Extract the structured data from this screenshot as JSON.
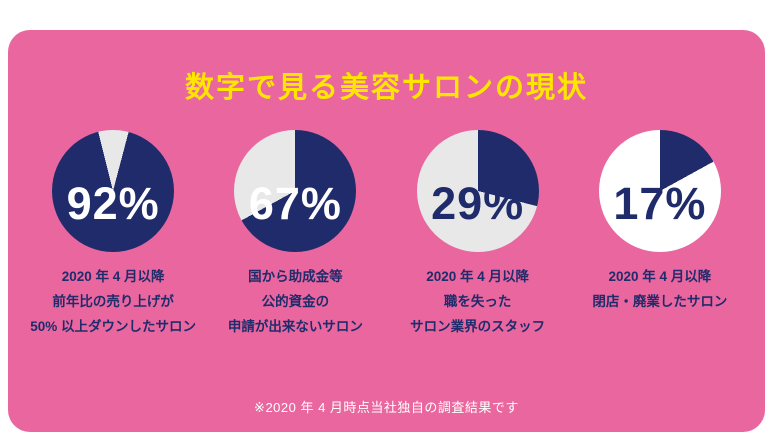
{
  "card": {
    "title": "数字で見る美容サロンの現状",
    "footnote": "※2020 年 4 月時点当社独自の調査結果です"
  },
  "colors": {
    "card_pink": "#E9679E",
    "title_yellow": "#FFE600",
    "navy": "#1F2B6B",
    "gray_slice": "#E8E8E8",
    "white": "#FFFFFF"
  },
  "chart_data": [
    {
      "type": "pie",
      "value_label": "92%",
      "percent": 92,
      "start_angle_deg": -14,
      "label_color": "#FFFFFF",
      "slices": [
        {
          "value": 8,
          "color": "#E8E8E8"
        },
        {
          "value": 92,
          "color": "#1F2B6B"
        }
      ],
      "caption_lines": {
        "0": "2020 年 4 月以降",
        "1": "前年比の売り上げが",
        "2": "50% 以上ダウンしたサロン"
      }
    },
    {
      "type": "pie",
      "value_label": "67%",
      "percent": 67,
      "start_angle_deg": 0,
      "label_color": "#FFFFFF",
      "slices": [
        {
          "value": 67,
          "color": "#1F2B6B"
        },
        {
          "value": 33,
          "color": "#E8E8E8"
        }
      ],
      "caption_lines": {
        "0": "国から助成金等",
        "1": "公的資金の",
        "2": "申請が出来ないサロン"
      }
    },
    {
      "type": "pie",
      "value_label": "29%",
      "percent": 29,
      "start_angle_deg": 0,
      "label_color": "#1F2B6B",
      "slices": [
        {
          "value": 29,
          "color": "#1F2B6B"
        },
        {
          "value": 71,
          "color": "#E8E8E8"
        }
      ],
      "caption_lines": {
        "0": "2020 年 4 月以降",
        "1": "職を失った",
        "2": "サロン業界のスタッフ"
      }
    },
    {
      "type": "pie",
      "value_label": "17%",
      "percent": 17,
      "start_angle_deg": 0,
      "label_color": "#1F2B6B",
      "slices": [
        {
          "value": 17,
          "color": "#1F2B6B"
        },
        {
          "value": 83,
          "color": "#FFFFFF"
        }
      ],
      "caption_lines": {
        "0": "2020 年 4 月以降",
        "1": "閉店・廃業したサロン"
      }
    }
  ]
}
